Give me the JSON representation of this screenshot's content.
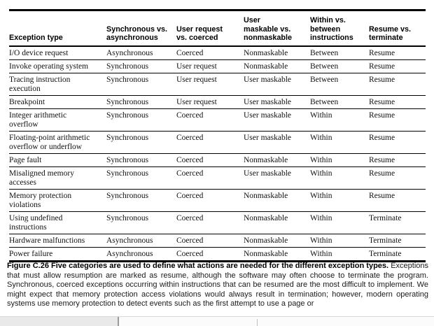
{
  "table": {
    "columns": [
      "Exception type",
      "Synchronous vs.\nasynchronous",
      "User request\nvs. coerced",
      "User\nmaskable vs.\nnonmaskable",
      "Within vs.\nbetween\ninstructions",
      "Resume vs.\nterminate"
    ],
    "rows": [
      [
        "I/O device request",
        "Asynchronous",
        "Coerced",
        "Nonmaskable",
        "Between",
        "Resume"
      ],
      [
        "Invoke operating system",
        "Synchronous",
        "User request",
        "Nonmaskable",
        "Between",
        "Resume"
      ],
      [
        "Tracing instruction\nexecution",
        "Synchronous",
        "User request",
        "User maskable",
        "Between",
        "Resume"
      ],
      [
        "Breakpoint",
        "Synchronous",
        "User request",
        "User maskable",
        "Between",
        "Resume"
      ],
      [
        "Integer arithmetic\noverflow",
        "Synchronous",
        "Coerced",
        "User maskable",
        "Within",
        "Resume"
      ],
      [
        "Floating-point arithmetic\noverflow or underflow",
        "Synchronous",
        "Coerced",
        "User maskable",
        "Within",
        "Resume"
      ],
      [
        "Page fault",
        "Synchronous",
        "Coerced",
        "Nonmaskable",
        "Within",
        "Resume"
      ],
      [
        "Misaligned memory\naccesses",
        "Synchronous",
        "Coerced",
        "User maskable",
        "Within",
        "Resume"
      ],
      [
        "Memory protection\nviolations",
        "Synchronous",
        "Coerced",
        "Nonmaskable",
        "Within",
        "Resume"
      ],
      [
        "Using undefined\ninstructions",
        "Synchronous",
        "Coerced",
        "Nonmaskable",
        "Within",
        "Terminate"
      ],
      [
        "Hardware malfunctions",
        "Asynchronous",
        "Coerced",
        "Nonmaskable",
        "Within",
        "Terminate"
      ],
      [
        "Power failure",
        "Asynchronous",
        "Coerced",
        "Nonmaskable",
        "Within",
        "Terminate"
      ]
    ]
  },
  "caption": {
    "label": "Figure C.26",
    "bold_sentence": "Five categories are used to define what actions are needed for the different exception types.",
    "body": "Exceptions that must allow resumption are marked as resume, although the software may often choose to terminate the program. Synchronous, coerced exceptions occurring within instructions that can be resumed are the most difficult to implement. We might expect that memory protection access violations would always result in termination; however, modern operating systems use memory protection to detect events such as the first attempt to use a page or"
  },
  "colors": {
    "rule_black": "#000000",
    "text": "#111111",
    "scroll_track": "#fbfbfb",
    "scroll_thumb": "#e9e9e9",
    "scroll_border": "#d8d8d8"
  }
}
